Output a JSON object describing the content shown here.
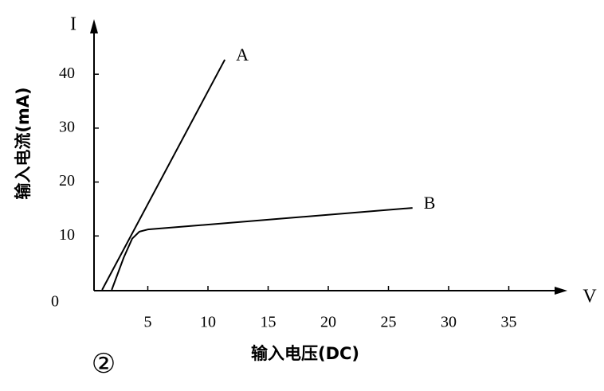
{
  "chart_data": {
    "type": "line",
    "y_axis_symbol": "I",
    "x_axis_symbol": "V",
    "y_label": "输入电流(mA)",
    "x_label": "输入电压(DC)",
    "annotation": "②",
    "series": [
      {
        "name": "A",
        "color": "#000000",
        "x": [
          1.2,
          11.4
        ],
        "values": [
          0,
          42.7
        ]
      },
      {
        "name": "B",
        "color": "#000000",
        "x": [
          2,
          3,
          3.7,
          4.3,
          5,
          27
        ],
        "values": [
          0,
          6,
          9.5,
          10.8,
          11.2,
          15.2
        ]
      }
    ],
    "xlim": [
      0,
      40
    ],
    "ylim": [
      0,
      50
    ],
    "xticks": [
      5,
      10,
      15,
      20,
      25,
      30,
      35
    ],
    "yticks": [
      0,
      10,
      20,
      30,
      40
    ],
    "grid": false
  }
}
